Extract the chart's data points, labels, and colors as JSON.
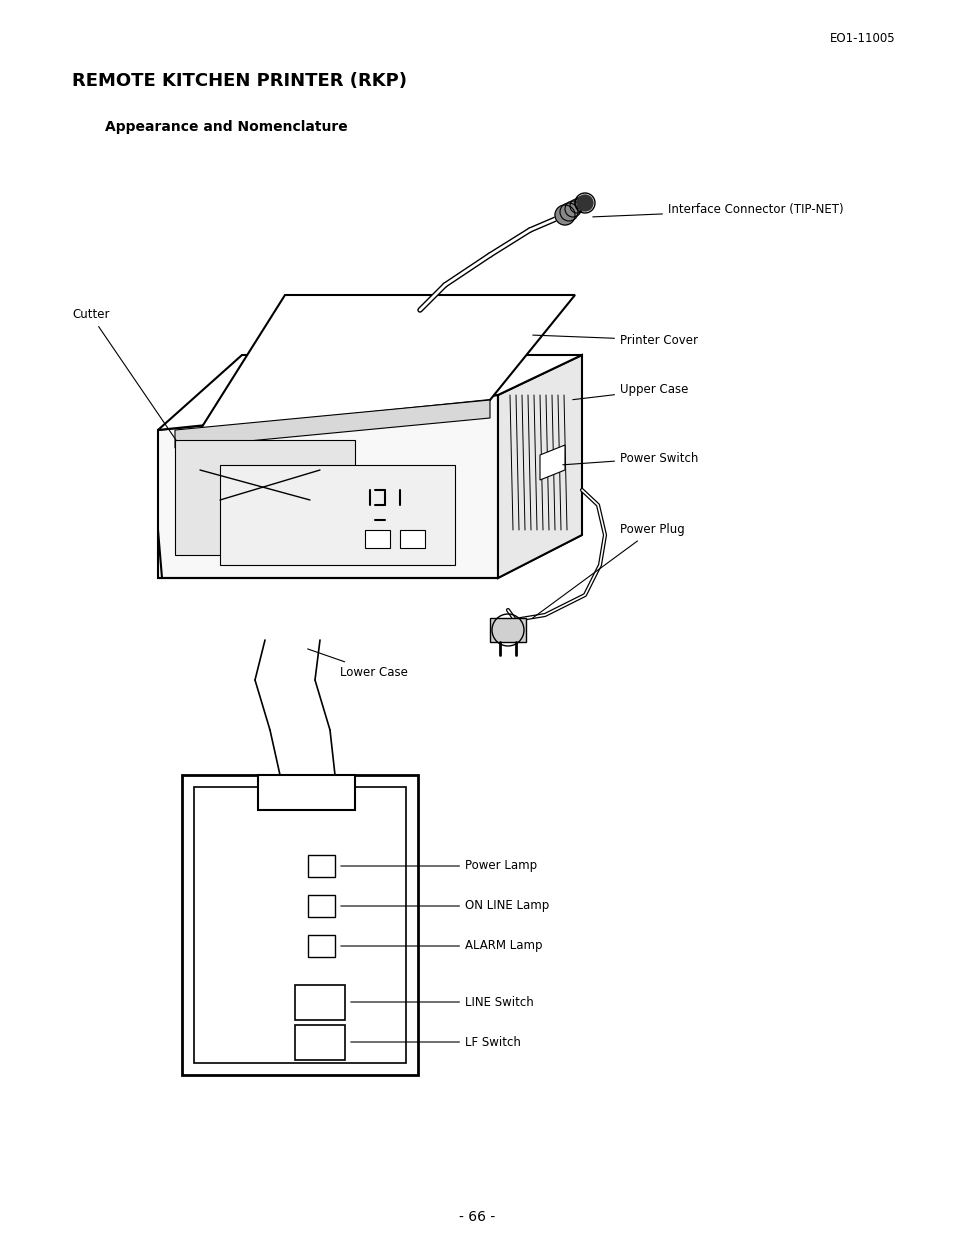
{
  "page_id": "EO1-11005",
  "title": "REMOTE KITCHEN PRINTER (RKP)",
  "subtitle": "Appearance and Nomenclature",
  "page_number": "- 66 -",
  "bg_color": "#ffffff",
  "text_color": "#000000",
  "figsize": [
    9.54,
    12.39
  ],
  "dpi": 100
}
